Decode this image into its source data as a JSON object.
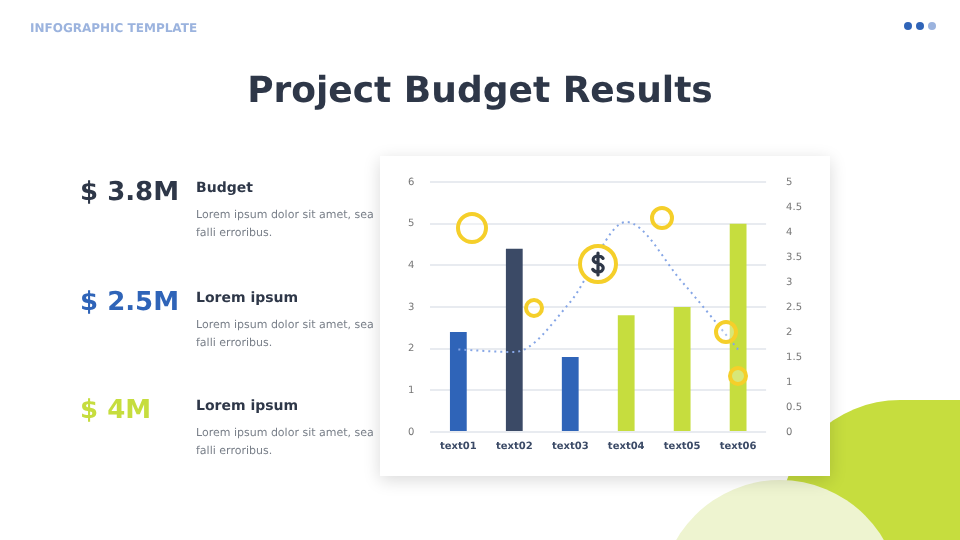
{
  "chart_data": {
    "type": "bar",
    "title": "Project Budget Results",
    "categories": [
      "text01",
      "text02",
      "text03",
      "text04",
      "text05",
      "text06"
    ],
    "series": [
      {
        "type": "bar",
        "colors": [
          "#2f64b8",
          "#3b4a66",
          "#2f64b8",
          "#c6dd3e",
          "#c6dd3e",
          "#c6dd3e"
        ],
        "values": [
          2.4,
          4.4,
          1.8,
          2.8,
          3.0,
          5.0
        ]
      },
      {
        "type": "line",
        "axis": "y2",
        "color": "#86a6e6",
        "line_style": "dotted",
        "marker": "none",
        "values": [
          1.65,
          1.6,
          2.6,
          4.2,
          3.0,
          1.65
        ]
      }
    ],
    "ylim": [
      0,
      6
    ],
    "yticks": [
      0,
      1,
      2,
      3,
      4,
      5,
      6
    ],
    "y2lim": [
      0,
      5
    ],
    "y2ticks": [
      0,
      0.5,
      1,
      1.5,
      2,
      2.5,
      3,
      3.5,
      4,
      4.5,
      5
    ],
    "grid": "y",
    "legend": false,
    "annotations": [
      "INFOGRAPHIC TEMPLATE",
      "$ 3.8M",
      "Budget",
      "Lorem ipsum dolor sit amet, sea falli erroribus.",
      "$ 2.5M",
      "Lorem ipsum",
      "Lorem ipsum dolor sit amet, sea falli erroribus.",
      "$ 4M",
      "Lorem ipsum",
      "Lorem ipsum dolor sit amet, sea falli erroribus."
    ]
  }
}
